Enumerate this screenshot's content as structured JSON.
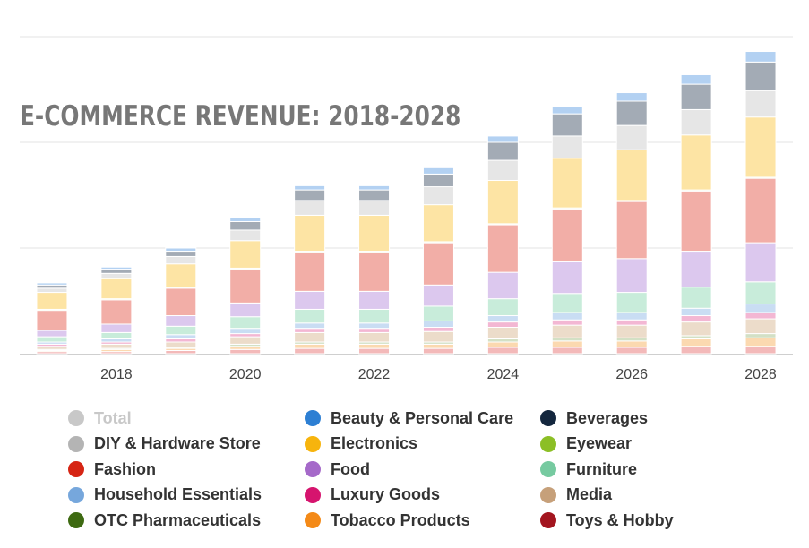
{
  "chart_data": {
    "type": "bar",
    "stacked": true,
    "title": "E-COMMERCE REVENUE: 2018-2028",
    "xlabel": "",
    "ylabel": "",
    "ylim": [
      0,
      300
    ],
    "grid": true,
    "legend_position": "bottom",
    "categories": [
      "2017",
      "2018",
      "2019",
      "2020",
      "2021",
      "2022",
      "2023",
      "2024",
      "2025",
      "2026",
      "2027",
      "2028"
    ],
    "x_tick_labels": [
      "2018",
      "2020",
      "2022",
      "2024",
      "2026",
      "2028"
    ],
    "legend": [
      {
        "name": "Total",
        "color": "#c8c8c8",
        "disabled": true
      },
      {
        "name": "Beauty & Personal Care",
        "color": "#2d7fd3",
        "disabled": false
      },
      {
        "name": "Beverages",
        "color": "#14273e",
        "disabled": false
      },
      {
        "name": "DIY & Hardware Store",
        "color": "#b4b4b4",
        "disabled": false
      },
      {
        "name": "Electronics",
        "color": "#f7b40d",
        "disabled": false
      },
      {
        "name": "Eyewear",
        "color": "#8cbf26",
        "disabled": false
      },
      {
        "name": "Fashion",
        "color": "#d62514",
        "disabled": false
      },
      {
        "name": "Food",
        "color": "#a569c9",
        "disabled": false
      },
      {
        "name": "Furniture",
        "color": "#76caa0",
        "disabled": false
      },
      {
        "name": "Household Essentials",
        "color": "#76a7dc",
        "disabled": false
      },
      {
        "name": "Luxury Goods",
        "color": "#d6146e",
        "disabled": false
      },
      {
        "name": "Media",
        "color": "#c6a07a",
        "disabled": false
      },
      {
        "name": "OTC Pharmaceuticals",
        "color": "#3e6a12",
        "disabled": false
      },
      {
        "name": "Tobacco Products",
        "color": "#f48a18",
        "disabled": false
      },
      {
        "name": "Toys & Hobby",
        "color": "#a3151f",
        "disabled": false
      }
    ],
    "series": [
      {
        "name": "Toys & Hobby",
        "color": "#f3b9b9",
        "values": [
          2,
          2,
          3,
          4,
          5,
          5,
          5,
          6,
          6,
          6,
          7,
          7
        ]
      },
      {
        "name": "Tobacco Products",
        "color": "#fbd9b0",
        "values": [
          1,
          2,
          2,
          3,
          4,
          4,
          4,
          5,
          6,
          6,
          7,
          8
        ]
      },
      {
        "name": "OTC Pharmaceuticals",
        "color": "#d3e0c5",
        "values": [
          1,
          1,
          1,
          2,
          2,
          2,
          2,
          3,
          3,
          3,
          3,
          4
        ]
      },
      {
        "name": "Media",
        "color": "#ecdcca",
        "values": [
          3,
          4,
          5,
          7,
          9,
          9,
          10,
          11,
          12,
          12,
          13,
          14
        ]
      },
      {
        "name": "Luxury Goods",
        "color": "#f3b7d3",
        "values": [
          2,
          2,
          3,
          3,
          4,
          4,
          4,
          5,
          5,
          5,
          6,
          6
        ]
      },
      {
        "name": "Household Essentials",
        "color": "#c9ddf3",
        "values": [
          2,
          3,
          4,
          5,
          5,
          5,
          6,
          6,
          7,
          7,
          7,
          8
        ]
      },
      {
        "name": "Furniture",
        "color": "#c8ecda",
        "values": [
          5,
          6,
          8,
          11,
          13,
          13,
          14,
          16,
          18,
          19,
          20,
          21
        ]
      },
      {
        "name": "Food",
        "color": "#dcc8ee",
        "values": [
          6,
          8,
          10,
          13,
          17,
          17,
          20,
          25,
          30,
          32,
          34,
          37
        ]
      },
      {
        "name": "Fashion",
        "color": "#f2aea7",
        "values": [
          19,
          23,
          26,
          32,
          37,
          37,
          40,
          45,
          50,
          54,
          57,
          61
        ]
      },
      {
        "name": "Eyewear",
        "color": "#e6f2cd",
        "values": [
          1,
          1,
          1,
          1,
          1,
          1,
          1,
          1,
          1,
          1,
          1,
          1
        ]
      },
      {
        "name": "Electronics",
        "color": "#fde4a4",
        "values": [
          16,
          19,
          22,
          26,
          34,
          34,
          35,
          41,
          47,
          48,
          52,
          57
        ]
      },
      {
        "name": "DIY & Hardware Store",
        "color": "#e6e6e6",
        "values": [
          4,
          5,
          7,
          10,
          14,
          14,
          17,
          19,
          21,
          23,
          24,
          25
        ]
      },
      {
        "name": "Beverages",
        "color": "#a3abb5",
        "values": [
          3,
          4,
          5,
          8,
          10,
          10,
          12,
          17,
          21,
          23,
          24,
          27
        ]
      },
      {
        "name": "Beauty & Personal Care",
        "color": "#b3d1f2",
        "values": [
          2,
          2,
          3,
          4,
          4,
          4,
          6,
          6,
          7,
          8,
          9,
          10
        ]
      }
    ]
  }
}
